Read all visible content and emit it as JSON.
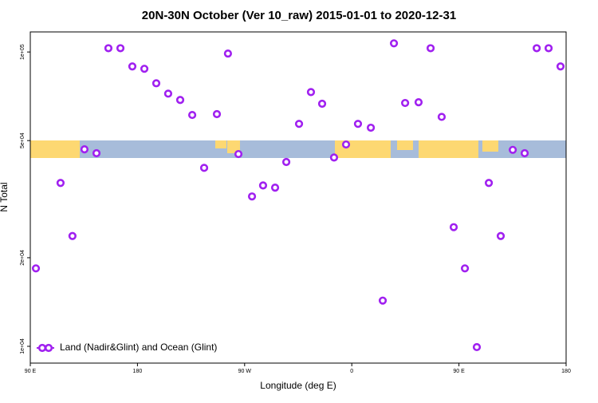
{
  "chart_data": {
    "type": "scatter",
    "title": "20N-30N October (Ver 10_raw)   2015-01-01 to 2020-12-31",
    "x_label": "Longitude (deg E)",
    "y_label": "N Total",
    "xlim": [
      90,
      540
    ],
    "xticks": [
      {
        "value": 90,
        "label": "90 E"
      },
      180,
      {
        "value": 270,
        "label": "90 W"
      },
      {
        "value": 360,
        "label": "0"
      },
      {
        "value": 450,
        "label": "90 E"
      },
      {
        "value": 540,
        "label": "180"
      }
    ],
    "ylim": [
      8770,
      117000
    ],
    "log_y": true,
    "yticks": [
      {
        "value": 10000,
        "label": "1e+04"
      },
      {
        "value": 20000,
        "label": "2e+04"
      },
      {
        "value": 50000,
        "label": "5e+04"
      },
      {
        "value": 100000,
        "label": "1e+05"
      }
    ],
    "legend": "bottom-left",
    "series": [
      {
        "name": "Land (Nadir&Glint) and Ocean (Glint)",
        "color": "#a020f0",
        "x": [
          94.7,
          115.4,
          125.4,
          135.5,
          145.6,
          155.6,
          165.7,
          175.7,
          185.8,
          195.8,
          205.8,
          215.9,
          226,
          236,
          246.7,
          256,
          264.8,
          276.2,
          285.5,
          295.6,
          305,
          315.7,
          325.7,
          335.1,
          345.1,
          355.2,
          365.2,
          376,
          386,
          395.4,
          404.8,
          416.1,
          426.2,
          435.5,
          445.6,
          455,
          465,
          475.1,
          485.1,
          495.2,
          505.2,
          515.3,
          525.3,
          535.3
        ],
        "values": [
          18400,
          35900,
          23700,
          46700,
          45300,
          103000,
          103000,
          89300,
          87700,
          78300,
          72200,
          68700,
          61100,
          40400,
          61500,
          98800,
          45000,
          32300,
          35200,
          34600,
          42300,
          57000,
          73100,
          66700,
          43800,
          48500,
          57000,
          55300,
          14300,
          107000,
          67100,
          67500,
          103000,
          60200,
          25400,
          18400,
          9940,
          35900,
          23700,
          46500,
          45300,
          103000,
          103000,
          89300
        ]
      }
    ]
  }
}
